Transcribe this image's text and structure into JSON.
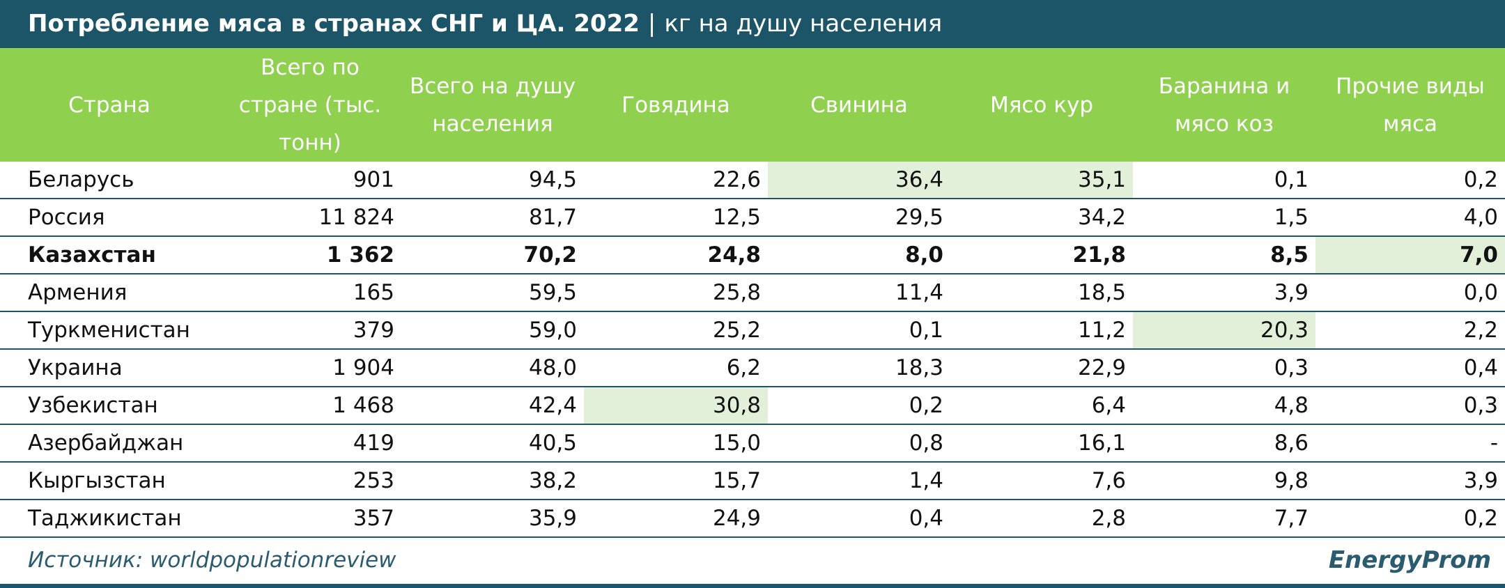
{
  "header": {
    "title": "Потребление мяса в странах СНГ и ЦА. 2022",
    "subtitle": "кг на душу населения"
  },
  "table": {
    "columns": [
      "Страна",
      "Всего по стране (тыс. тонн)",
      "Всего на душу населения",
      "Говядина",
      "Свинина",
      "Мясо кур",
      "Баранина и мясо коз",
      "Прочие виды мяса"
    ],
    "rows": [
      [
        "Беларусь",
        "901",
        "94,5",
        "22,6",
        "36,4",
        "35,1",
        "0,1",
        "0,2"
      ],
      [
        "Россия",
        "11 824",
        "81,7",
        "12,5",
        "29,5",
        "34,2",
        "1,5",
        "4,0"
      ],
      [
        "Казахстан",
        "1 362",
        "70,2",
        "24,8",
        "8,0",
        "21,8",
        "8,5",
        "7,0"
      ],
      [
        "Армения",
        "165",
        "59,5",
        "25,8",
        "11,4",
        "18,5",
        "3,9",
        "0,0"
      ],
      [
        "Туркменистан",
        "379",
        "59,0",
        "25,2",
        "0,1",
        "11,2",
        "20,3",
        "2,2"
      ],
      [
        "Украина",
        "1 904",
        "48,0",
        "6,2",
        "18,3",
        "22,9",
        "0,3",
        "0,4"
      ],
      [
        "Узбекистан",
        "1 468",
        "42,4",
        "30,8",
        "0,2",
        "6,4",
        "4,8",
        "0,3"
      ],
      [
        "Азербайджан",
        "419",
        "40,5",
        "15,0",
        "0,8",
        "16,1",
        "8,6",
        "-"
      ],
      [
        "Кыргызстан",
        "253",
        "38,2",
        "15,7",
        "1,4",
        "7,6",
        "9,8",
        "3,9"
      ],
      [
        "Таджикистан",
        "357",
        "35,9",
        "24,9",
        "0,4",
        "2,8",
        "7,7",
        "0,2"
      ]
    ]
  },
  "footer": {
    "source": "Источник: worldpopulationreview",
    "logo": "EnergyProm"
  }
}
